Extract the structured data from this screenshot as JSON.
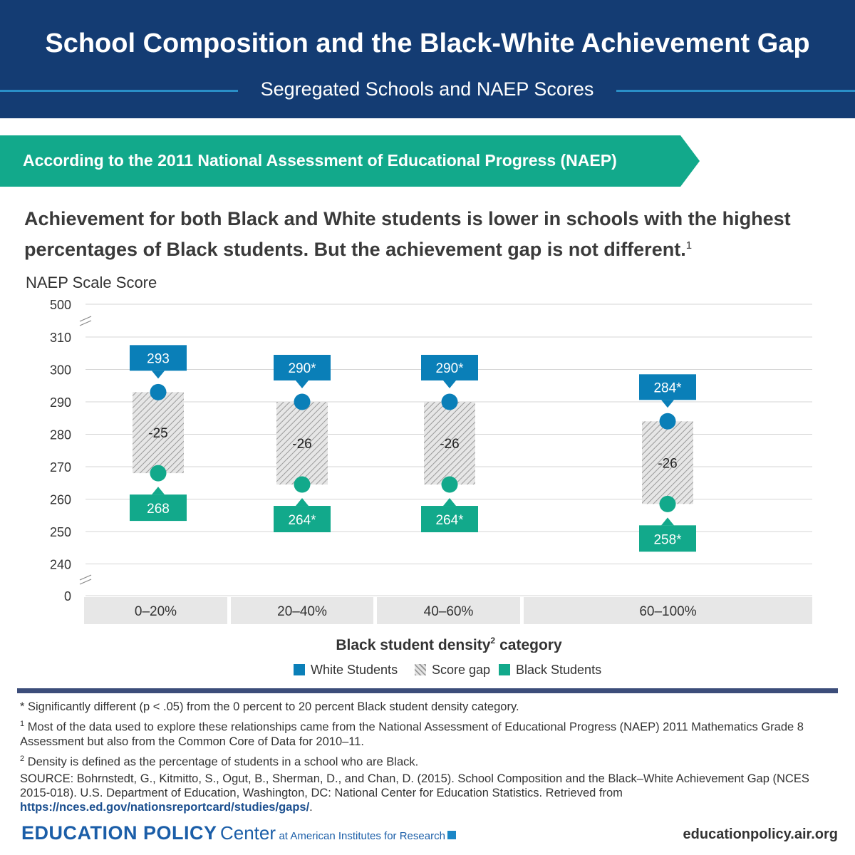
{
  "header": {
    "title": "School Composition and the Black-White Achievement Gap",
    "subtitle": "Segregated Schools and NAEP Scores"
  },
  "banner": {
    "text": "According to the 2011 National Assessment of Educational Progress (NAEP)"
  },
  "lead": {
    "text": "Achievement for both Black and White students is lower in schools with the highest percentages of Black students. But the achievement gap is not different.",
    "footnote_mark": "1"
  },
  "chart_data": {
    "type": "dot-range",
    "ylabel": "NAEP Scale Score",
    "xlabel": "Black student density",
    "xlabel_mark": "2",
    "xlabel_suffix": "category",
    "y_ticks": [
      "500",
      "310",
      "300",
      "290",
      "280",
      "270",
      "260",
      "250",
      "240",
      "0"
    ],
    "ylim": [
      240,
      310
    ],
    "axis_breaks": true,
    "grid": true,
    "categories": [
      "0–20%",
      "20–40%",
      "40–60%",
      "60–100%"
    ],
    "series": [
      {
        "name": "White  Students",
        "color": "#0a7fb8",
        "values": [
          293,
          290,
          290,
          284
        ],
        "labels": [
          "293",
          "290*",
          "290*",
          "284*"
        ]
      },
      {
        "name": "Black Students",
        "color": "#12a98b",
        "values": [
          268,
          264.5,
          264.5,
          258.5
        ],
        "labels": [
          "268",
          "264*",
          "264*",
          "258*"
        ]
      }
    ],
    "gaps": {
      "name": "Score gap",
      "values": [
        -25,
        -26,
        -26,
        -26
      ],
      "labels": [
        "-25",
        "-26",
        "-26",
        "-26"
      ]
    },
    "legend": [
      "White  Students",
      "Score gap",
      "Black Students"
    ],
    "legend_position": "bottom"
  },
  "notes": {
    "sig": "* Significantly different (p < .05) from the 0 percent to 20 percent Black student density category.",
    "n1_mark": "1",
    "n1": "Most of the data used to explore these relationships came from the National Assessment of Educational Progress (NAEP) 2011 Mathematics Grade 8 Assessment but also from the Common Core of Data for 2010–11.",
    "n2_mark": "2",
    "n2": "Density is defined as the percentage of students in a school who are Black.",
    "source_pre": "SOURCE: Bohrnstedt, G., Kitmitto, S., Ogut, B., Sherman, D., and Chan, D. (2015). School Composition and the Black–White Achievement Gap (NCES 2015-018). U.S. Department of Education, Washington, DC: National Center for Education Statistics. Retrieved from",
    "source_link": "https://nces.ed.gov/nationsreportcard/studies/gaps/",
    "source_end": "."
  },
  "footer": {
    "brand_main": "EDUCATION POLICY",
    "brand_center": "Center",
    "brand_air": "at American Institutes for Research",
    "url": "educationpolicy.air.org"
  },
  "colors": {
    "navy": "#143c73",
    "teal": "#12a98b",
    "blue": "#0a7fb8",
    "rule": "#3c4d7a"
  }
}
